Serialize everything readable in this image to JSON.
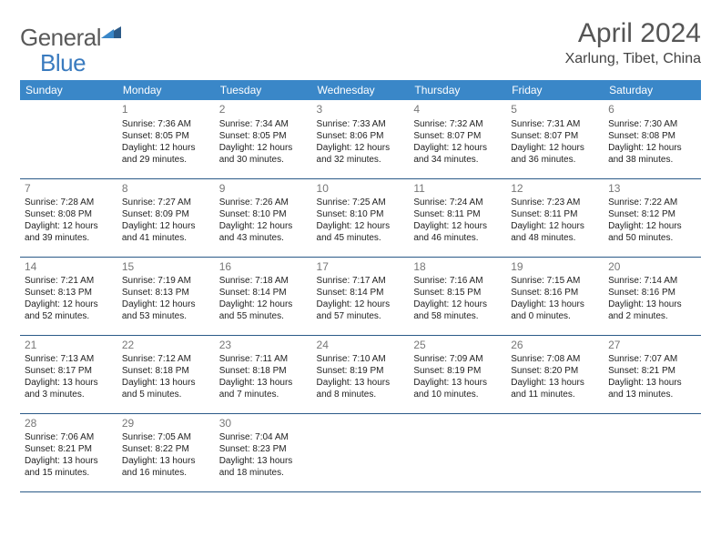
{
  "logo": {
    "general": "General",
    "blue": "Blue"
  },
  "title": "April 2024",
  "location": "Xarlung, Tibet, China",
  "header_bg": "#3a87c8",
  "header_text_color": "#ffffff",
  "border_color": "#2b5a88",
  "weekdays": [
    "Sunday",
    "Monday",
    "Tuesday",
    "Wednesday",
    "Thursday",
    "Friday",
    "Saturday"
  ],
  "weeks": [
    [
      null,
      {
        "d": "1",
        "sr": "7:36 AM",
        "ss": "8:05 PM",
        "dh": "12",
        "dm": "29"
      },
      {
        "d": "2",
        "sr": "7:34 AM",
        "ss": "8:05 PM",
        "dh": "12",
        "dm": "30"
      },
      {
        "d": "3",
        "sr": "7:33 AM",
        "ss": "8:06 PM",
        "dh": "12",
        "dm": "32"
      },
      {
        "d": "4",
        "sr": "7:32 AM",
        "ss": "8:07 PM",
        "dh": "12",
        "dm": "34"
      },
      {
        "d": "5",
        "sr": "7:31 AM",
        "ss": "8:07 PM",
        "dh": "12",
        "dm": "36"
      },
      {
        "d": "6",
        "sr": "7:30 AM",
        "ss": "8:08 PM",
        "dh": "12",
        "dm": "38"
      }
    ],
    [
      {
        "d": "7",
        "sr": "7:28 AM",
        "ss": "8:08 PM",
        "dh": "12",
        "dm": "39"
      },
      {
        "d": "8",
        "sr": "7:27 AM",
        "ss": "8:09 PM",
        "dh": "12",
        "dm": "41"
      },
      {
        "d": "9",
        "sr": "7:26 AM",
        "ss": "8:10 PM",
        "dh": "12",
        "dm": "43"
      },
      {
        "d": "10",
        "sr": "7:25 AM",
        "ss": "8:10 PM",
        "dh": "12",
        "dm": "45"
      },
      {
        "d": "11",
        "sr": "7:24 AM",
        "ss": "8:11 PM",
        "dh": "12",
        "dm": "46"
      },
      {
        "d": "12",
        "sr": "7:23 AM",
        "ss": "8:11 PM",
        "dh": "12",
        "dm": "48"
      },
      {
        "d": "13",
        "sr": "7:22 AM",
        "ss": "8:12 PM",
        "dh": "12",
        "dm": "50"
      }
    ],
    [
      {
        "d": "14",
        "sr": "7:21 AM",
        "ss": "8:13 PM",
        "dh": "12",
        "dm": "52"
      },
      {
        "d": "15",
        "sr": "7:19 AM",
        "ss": "8:13 PM",
        "dh": "12",
        "dm": "53"
      },
      {
        "d": "16",
        "sr": "7:18 AM",
        "ss": "8:14 PM",
        "dh": "12",
        "dm": "55"
      },
      {
        "d": "17",
        "sr": "7:17 AM",
        "ss": "8:14 PM",
        "dh": "12",
        "dm": "57"
      },
      {
        "d": "18",
        "sr": "7:16 AM",
        "ss": "8:15 PM",
        "dh": "12",
        "dm": "58"
      },
      {
        "d": "19",
        "sr": "7:15 AM",
        "ss": "8:16 PM",
        "dh": "13",
        "dm": "0"
      },
      {
        "d": "20",
        "sr": "7:14 AM",
        "ss": "8:16 PM",
        "dh": "13",
        "dm": "2"
      }
    ],
    [
      {
        "d": "21",
        "sr": "7:13 AM",
        "ss": "8:17 PM",
        "dh": "13",
        "dm": "3"
      },
      {
        "d": "22",
        "sr": "7:12 AM",
        "ss": "8:18 PM",
        "dh": "13",
        "dm": "5"
      },
      {
        "d": "23",
        "sr": "7:11 AM",
        "ss": "8:18 PM",
        "dh": "13",
        "dm": "7"
      },
      {
        "d": "24",
        "sr": "7:10 AM",
        "ss": "8:19 PM",
        "dh": "13",
        "dm": "8"
      },
      {
        "d": "25",
        "sr": "7:09 AM",
        "ss": "8:19 PM",
        "dh": "13",
        "dm": "10"
      },
      {
        "d": "26",
        "sr": "7:08 AM",
        "ss": "8:20 PM",
        "dh": "13",
        "dm": "11"
      },
      {
        "d": "27",
        "sr": "7:07 AM",
        "ss": "8:21 PM",
        "dh": "13",
        "dm": "13"
      }
    ],
    [
      {
        "d": "28",
        "sr": "7:06 AM",
        "ss": "8:21 PM",
        "dh": "13",
        "dm": "15"
      },
      {
        "d": "29",
        "sr": "7:05 AM",
        "ss": "8:22 PM",
        "dh": "13",
        "dm": "16"
      },
      {
        "d": "30",
        "sr": "7:04 AM",
        "ss": "8:23 PM",
        "dh": "13",
        "dm": "18"
      },
      null,
      null,
      null,
      null
    ]
  ]
}
